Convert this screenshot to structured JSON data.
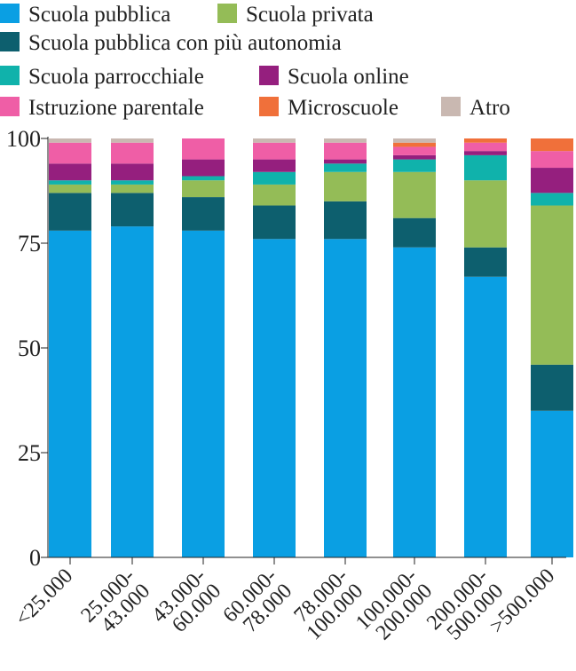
{
  "chart_data": {
    "type": "bar",
    "stacked": true,
    "title": "",
    "xlabel": "",
    "ylabel": "",
    "ylim": [
      0,
      100
    ],
    "yticks": [
      "0",
      "25",
      "50",
      "75",
      "100"
    ],
    "legend_position": "top",
    "categories": [
      [
        "<25.000"
      ],
      [
        "25.000-",
        "43.000"
      ],
      [
        "43.000-",
        "60.000"
      ],
      [
        "60.000-",
        "78.000"
      ],
      [
        "78.000-",
        "100.000"
      ],
      [
        "100.000-",
        "200.000"
      ],
      [
        "200.000-",
        "500.000"
      ],
      [
        ">500.000"
      ]
    ],
    "series": [
      {
        "name": "Scuola pubblica",
        "color": "#0a9fe3",
        "values": [
          78,
          79,
          78,
          76,
          76,
          74,
          67,
          35
        ]
      },
      {
        "name": "Scuola pubblica con più autonomia",
        "color": "#0d5f6e",
        "values": [
          9,
          8,
          8,
          8,
          9,
          7,
          7,
          11
        ]
      },
      {
        "name": "Scuola privata",
        "color": "#94bc57",
        "values": [
          2,
          2,
          4,
          5,
          7,
          11,
          16,
          38
        ]
      },
      {
        "name": "Scuola parrocchiale",
        "color": "#10b2ab",
        "values": [
          1,
          1,
          1,
          3,
          2,
          3,
          6,
          3
        ]
      },
      {
        "name": "Scuola online",
        "color": "#951f7e",
        "values": [
          4,
          4,
          4,
          3,
          1,
          1,
          1,
          6
        ]
      },
      {
        "name": "Istruzione parentale",
        "color": "#ef5ea6",
        "values": [
          5,
          5,
          5,
          4,
          4,
          2,
          2,
          4
        ]
      },
      {
        "name": "Microscuole",
        "color": "#f0703a",
        "values": [
          0,
          0,
          0,
          0,
          0,
          1,
          1,
          3
        ]
      },
      {
        "name": "Atro",
        "color": "#c9b8b1",
        "values": [
          1,
          1,
          0,
          1,
          1,
          1,
          0,
          0
        ]
      }
    ]
  },
  "legend_layout": [
    [
      "Scuola pubblica",
      "Scuola privata"
    ],
    [
      "Scuola pubblica con più autonomia"
    ],
    [
      "Scuola parrocchiale",
      "Scuola online"
    ],
    [
      "Istruzione parentale",
      "Microscuole",
      "Atro"
    ]
  ]
}
